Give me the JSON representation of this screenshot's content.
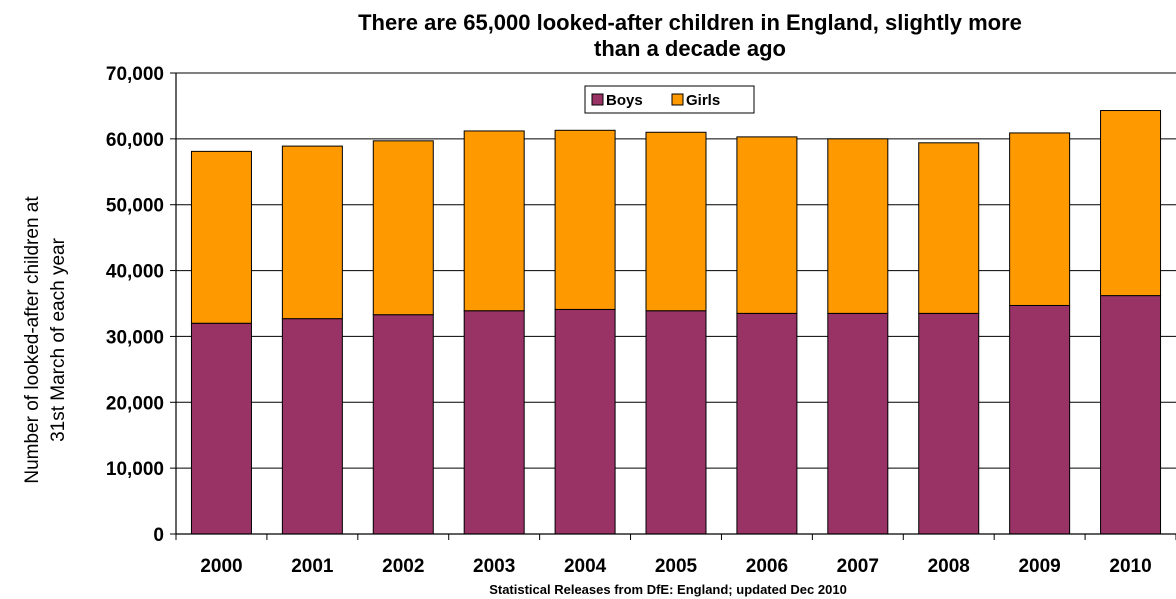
{
  "chart_data": {
    "type": "bar",
    "stacked": true,
    "title_line1": "There are 65,000 looked-after children in England, slightly more",
    "title_line2": "than a decade ago",
    "ylabel_line1": "Number of looked-after children at",
    "ylabel_line2": "31st March of each year",
    "source": "Statistical Releases from DfE: England; updated Dec 2010",
    "ylim": [
      0,
      70000
    ],
    "yticks": [
      0,
      10000,
      20000,
      30000,
      40000,
      50000,
      60000,
      70000
    ],
    "ytick_labels": [
      "0",
      "10,000",
      "20,000",
      "30,000",
      "40,000",
      "50,000",
      "60,000",
      "70,000"
    ],
    "categories": [
      "2000",
      "2001",
      "2002",
      "2003",
      "2004",
      "2005",
      "2006",
      "2007",
      "2008",
      "2009",
      "2010"
    ],
    "series": [
      {
        "name": "Boys",
        "color": "#993366",
        "values": [
          32000,
          32700,
          33300,
          33900,
          34100,
          33900,
          33500,
          33500,
          33500,
          34700,
          36200
        ]
      },
      {
        "name": "Girls",
        "color": "#FF9900",
        "values": [
          26100,
          26200,
          26400,
          27300,
          27200,
          27100,
          26800,
          26500,
          25900,
          26200,
          28100
        ]
      }
    ],
    "legend_position": "top-center",
    "grid": "horizontal"
  }
}
